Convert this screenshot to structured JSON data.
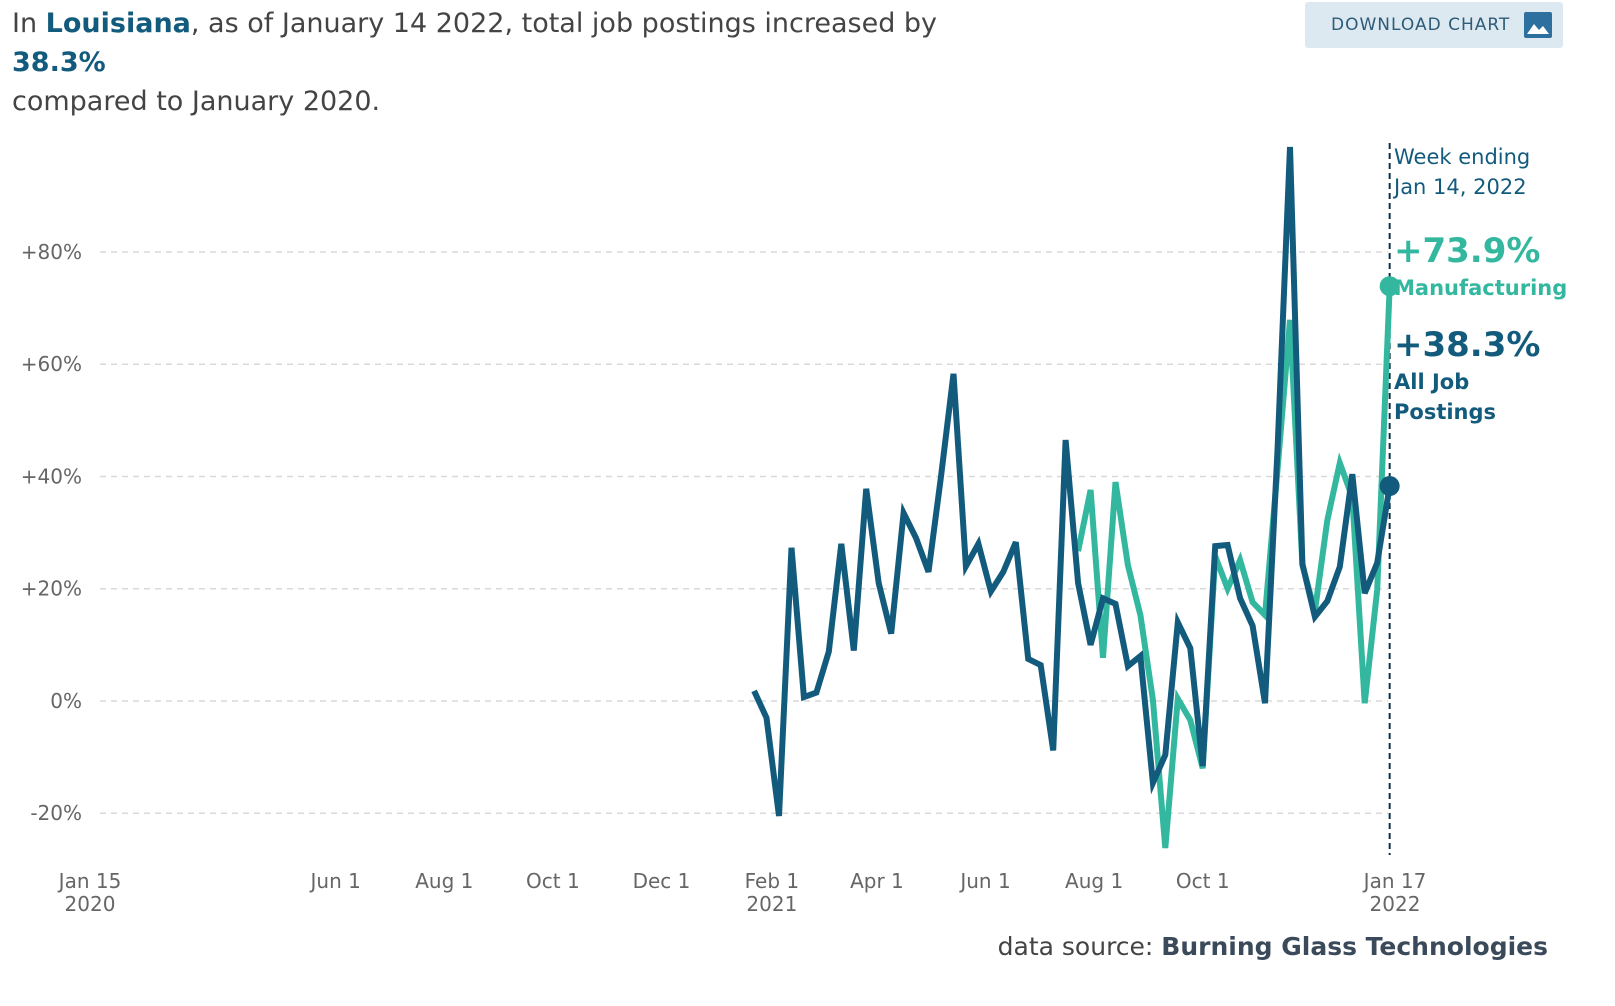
{
  "header": {
    "prefix": "In",
    "state": "Louisiana",
    "middle": ", as of January 14 2022, total job postings increased by",
    "value": "38.3%",
    "suffix": "compared to January 2020."
  },
  "button": "DOWNLOAD CHART",
  "source": {
    "label": "data source:",
    "name": "Burning Glass Technologies"
  },
  "chart_data": {
    "type": "line",
    "annotation": [
      "Week ending",
      "Jan 14, 2022"
    ],
    "x": [
      "2021-01-22",
      "2021-01-29",
      "2021-02-05",
      "2021-02-12",
      "2021-02-19",
      "2021-02-26",
      "2021-03-05",
      "2021-03-12",
      "2021-03-19",
      "2021-03-26",
      "2021-04-02",
      "2021-04-09",
      "2021-04-16",
      "2021-04-23",
      "2021-04-30",
      "2021-05-07",
      "2021-05-14",
      "2021-05-21",
      "2021-05-28",
      "2021-06-04",
      "2021-06-11",
      "2021-06-18",
      "2021-06-25",
      "2021-07-02",
      "2021-07-09",
      "2021-07-16",
      "2021-07-23",
      "2021-07-30",
      "2021-08-06",
      "2021-08-13",
      "2021-08-20",
      "2021-08-27",
      "2021-09-03",
      "2021-09-10",
      "2021-09-17",
      "2021-09-24",
      "2021-10-01",
      "2021-10-08",
      "2021-10-15",
      "2021-10-22",
      "2021-10-29",
      "2021-11-05",
      "2021-11-12",
      "2021-11-19",
      "2021-11-26",
      "2021-12-03",
      "2021-12-10",
      "2021-12-17",
      "2021-12-24",
      "2021-12-31",
      "2022-01-07",
      "2022-01-14"
    ],
    "series": [
      {
        "name": "Manufacturing",
        "color": "#33b89f",
        "values": [
          null,
          null,
          null,
          null,
          null,
          null,
          null,
          null,
          null,
          null,
          null,
          null,
          null,
          null,
          null,
          null,
          null,
          null,
          null,
          null,
          null,
          null,
          null,
          null,
          null,
          null,
          26.7,
          37.6,
          7.7,
          39,
          24.2,
          15.3,
          0.2,
          -26.2,
          0.4,
          -3.4,
          -12,
          25.8,
          20,
          25.1,
          17.6,
          15.3,
          41.2,
          67.9,
          24.2,
          16,
          32.2,
          42.4,
          36.3,
          -0.4,
          19.8,
          73.9
        ],
        "value_labels": [
          null,
          null,
          null,
          null,
          null,
          null,
          null,
          null,
          null,
          null,
          null,
          null,
          null,
          null,
          null,
          null,
          null,
          null,
          null,
          null,
          null,
          null,
          null,
          null,
          null,
          null,
          null,
          null,
          null,
          null,
          null,
          null,
          null,
          null,
          null,
          null,
          null,
          null,
          null,
          null,
          null,
          null,
          null,
          null,
          null,
          null,
          null,
          null,
          null,
          null,
          null,
          "+73.9%"
        ]
      },
      {
        "name": "All Job Postings",
        "color": "#135b7d",
        "values": [
          1.8,
          -3,
          -20.5,
          27.3,
          0.7,
          1.5,
          8.8,
          28,
          9,
          37.8,
          21,
          12,
          33.5,
          29,
          23,
          40,
          58.3,
          24,
          28,
          19.5,
          23,
          28.3,
          7.5,
          6.4,
          -8.8,
          46.5,
          21,
          10,
          18.3,
          17.3,
          6.2,
          8,
          -14.6,
          -9.6,
          14,
          9.4,
          -11.6,
          27.6,
          27.8,
          18.3,
          13.4,
          -0.4,
          44.7,
          98.7,
          24.4,
          15,
          17.8,
          23.9,
          40.4,
          19.2,
          24.6,
          38.3
        ],
        "value_labels": [
          null,
          null,
          null,
          null,
          null,
          null,
          null,
          null,
          null,
          null,
          null,
          null,
          null,
          null,
          null,
          null,
          null,
          null,
          null,
          null,
          null,
          null,
          null,
          null,
          null,
          null,
          null,
          null,
          null,
          null,
          null,
          null,
          null,
          null,
          null,
          null,
          null,
          null,
          null,
          null,
          null,
          null,
          null,
          null,
          null,
          null,
          null,
          null,
          null,
          null,
          null,
          "+38.3%"
        ]
      }
    ],
    "xlim": [
      "2020-01-15",
      "2022-01-17"
    ],
    "xticks": [
      {
        "value": "2020-01-15",
        "label": "Jan 15\n2020"
      },
      {
        "value": "2020-06-01",
        "label": "Jun 1"
      },
      {
        "value": "2020-08-01",
        "label": "Aug 1"
      },
      {
        "value": "2020-10-01",
        "label": "Oct 1"
      },
      {
        "value": "2020-12-01",
        "label": "Dec 1"
      },
      {
        "value": "2021-02-01",
        "label": "Feb 1\n2021"
      },
      {
        "value": "2021-04-01",
        "label": "Apr 1"
      },
      {
        "value": "2021-06-01",
        "label": "Jun 1"
      },
      {
        "value": "2021-08-01",
        "label": "Aug 1"
      },
      {
        "value": "2021-10-01",
        "label": "Oct 1"
      },
      {
        "value": "2022-01-17",
        "label": "Jan 17\n2022"
      }
    ],
    "ylim": [
      -30,
      100
    ],
    "yticks": [
      {
        "value": -20,
        "label": "-20%"
      },
      {
        "value": 0,
        "label": "0%"
      },
      {
        "value": 20,
        "label": "+20%"
      },
      {
        "value": 40,
        "label": "+40%"
      },
      {
        "value": 60,
        "label": "+60%"
      },
      {
        "value": 80,
        "label": "+80%"
      }
    ],
    "grid": true
  }
}
